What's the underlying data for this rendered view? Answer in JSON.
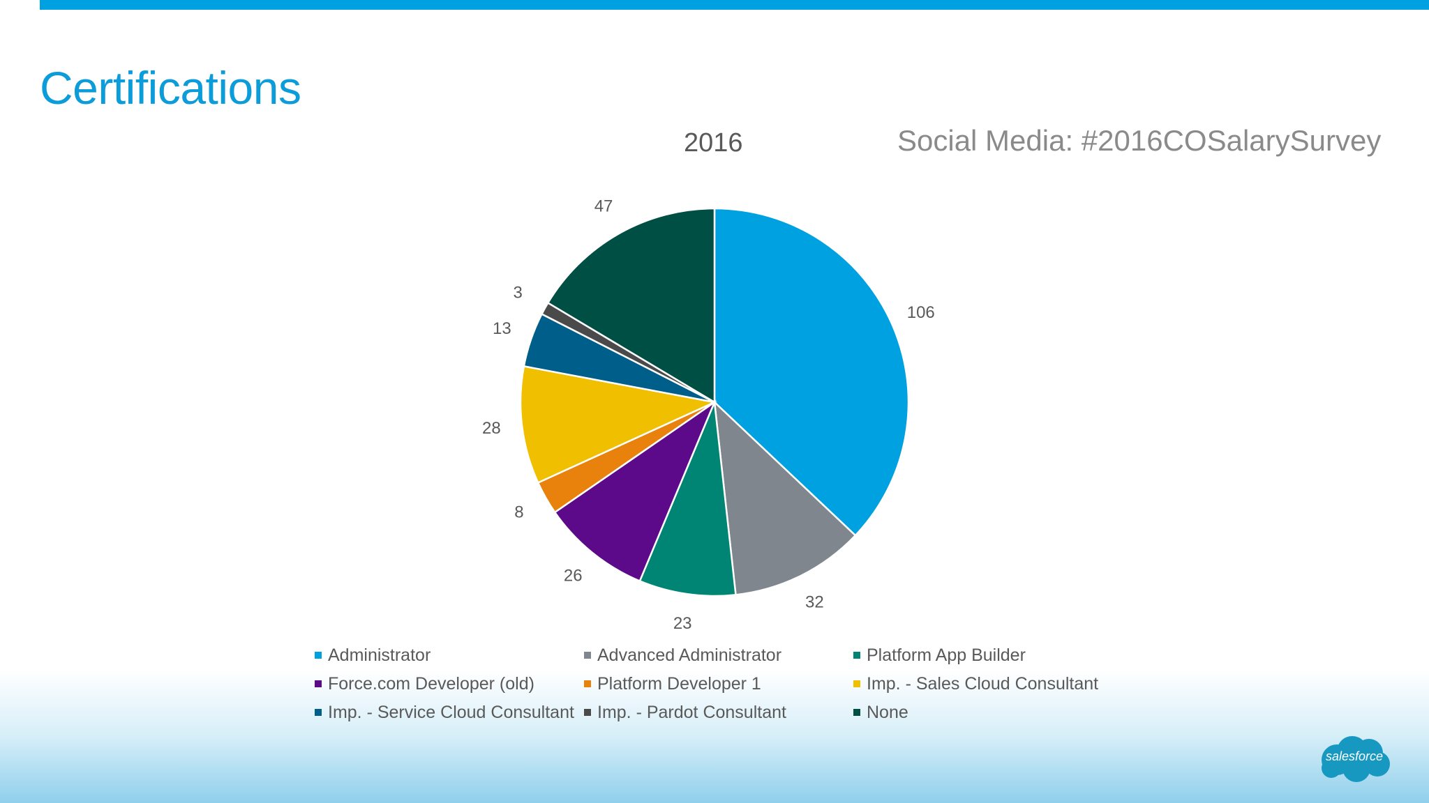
{
  "page_title": "Certifications",
  "social_tag": "Social Media: #2016COSalarySurvey",
  "logo_text": "salesforce",
  "colors": {
    "accent": "#00a1e0",
    "title": "#0b9cd9"
  },
  "chart_data": {
    "type": "pie",
    "title": "2016",
    "start_angle_deg": 0,
    "direction": "clockwise",
    "legend_position": "bottom",
    "slices": [
      {
        "label": "Administrator",
        "value": 106,
        "color": "#00a1e0"
      },
      {
        "label": "Advanced Administrator",
        "value": 32,
        "color": "#7f868d"
      },
      {
        "label": "Platform App Builder",
        "value": 23,
        "color": "#008575"
      },
      {
        "label": "Force.com Developer (old)",
        "value": 26,
        "color": "#5c0a8a"
      },
      {
        "label": "Platform Developer 1",
        "value": 8,
        "color": "#e8820c"
      },
      {
        "label": "Imp. - Sales Cloud Consultant",
        "value": 28,
        "color": "#f0c000"
      },
      {
        "label": "Imp. - Service Cloud Consultant",
        "value": 13,
        "color": "#005f8a"
      },
      {
        "label": "Imp. - Pardot Consultant",
        "value": 3,
        "color": "#4a4a4a"
      },
      {
        "label": "None",
        "value": 47,
        "color": "#004f45"
      }
    ]
  }
}
